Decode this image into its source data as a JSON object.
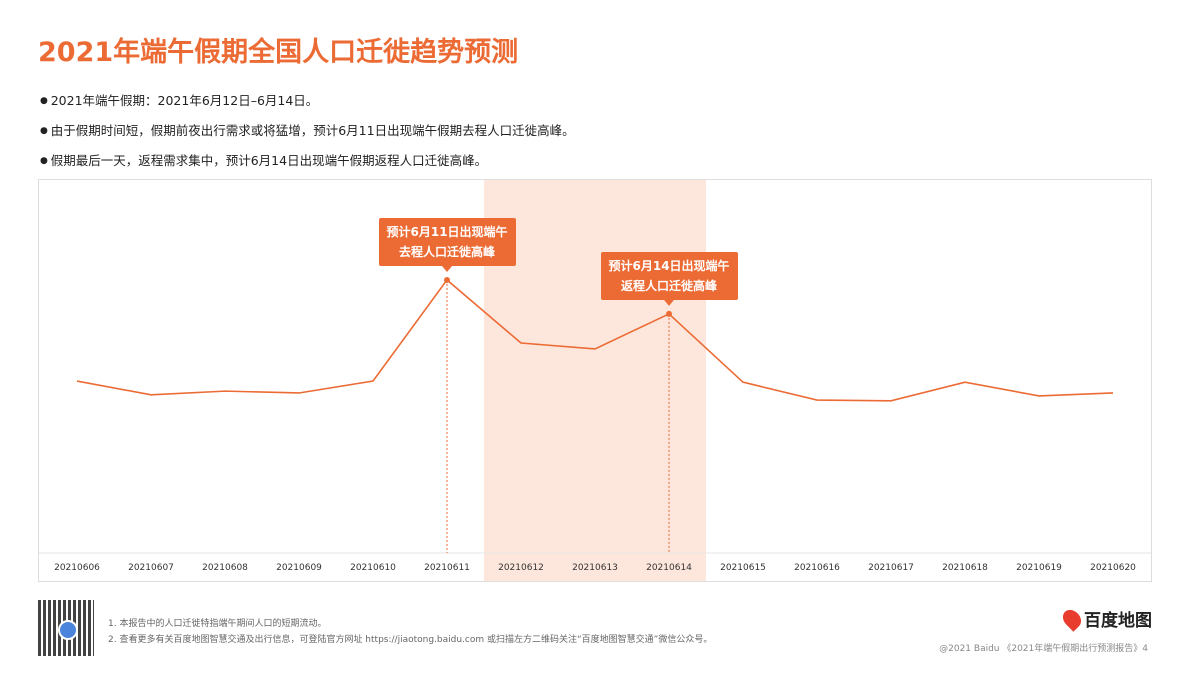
{
  "title": "2021年端午假期全国人口迁徙趋势预测",
  "bullets": [
    "2021年端午假期：2021年6月12日–6月14日。",
    "由于假期时间短，假期前夜出行需求或将猛增，预计6月11日出现端午假期去程人口迁徙高峰。",
    "假期最后一天，返程需求集中，预计6月14日出现端午假期返程人口迁徙高峰。"
  ],
  "chart_data": {
    "type": "line",
    "categories": [
      "20210606",
      "20210607",
      "20210608",
      "20210609",
      "20210610",
      "20210611",
      "20210612",
      "20210613",
      "20210614",
      "20210615",
      "20210616",
      "20210617",
      "20210618",
      "20210619",
      "20210620"
    ],
    "values": [
      46.1,
      42.4,
      43.4,
      42.9,
      46.1,
      73.2,
      56.3,
      54.7,
      64.1,
      45.8,
      41.0,
      40.8,
      45.8,
      42.1,
      42.9
    ],
    "ylim": [
      0,
      100
    ],
    "y_axis_shown": false,
    "grid": false,
    "line_color": "#ec6b35",
    "highlight_range": [
      "20210612",
      "20210614"
    ],
    "highlight_color": "#fde6dc",
    "annotations": [
      {
        "x": "20210611",
        "text_lines": [
          "预计6月11日出现端午",
          "去程人口迁徙高峰"
        ]
      },
      {
        "x": "20210614",
        "text_lines": [
          "预计6月14日出现端午",
          "返程人口迁徙高峰"
        ]
      }
    ]
  },
  "footer": {
    "notes": [
      "1.  本报告中的人口迁徙特指端午期间人口的短期流动。",
      "2.  查看更多有关百度地图智慧交通及出行信息，可登陆官方网址 https://jiaotong.baidu.com 或扫描左方二维码关注“百度地图智慧交通”微信公众号。"
    ],
    "logo": "百度地图",
    "copyright": "@2021 Baidu 《2021年端午假期出行预测报告》4"
  }
}
